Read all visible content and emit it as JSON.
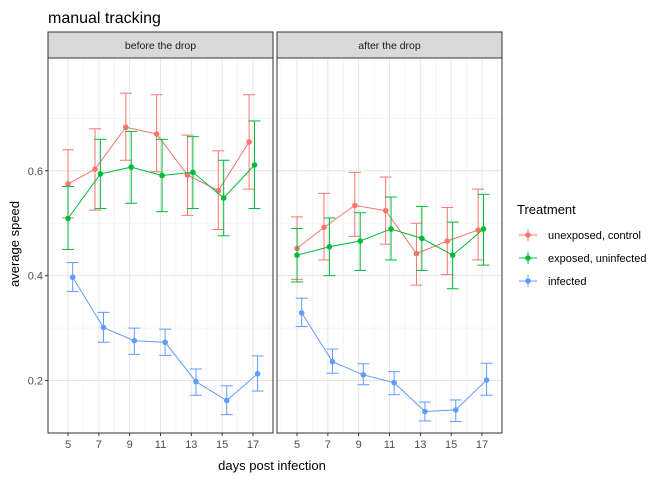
{
  "chart_data": {
    "type": "line",
    "title": "manual tracking",
    "xlabel": "days post infection",
    "ylabel": "average speed",
    "x": [
      5,
      7,
      9,
      11,
      13,
      15,
      17
    ],
    "xticks": [
      "5",
      "7",
      "9",
      "11",
      "13",
      "15",
      "17"
    ],
    "xlim": [
      3.7,
      18.3
    ],
    "ylim": [
      0.1,
      0.815
    ],
    "yticks": [
      0.2,
      0.4,
      0.6
    ],
    "ytick_labels": [
      "0.2",
      "0.4",
      "0.6"
    ],
    "grid": true,
    "theme": "bw",
    "legend": {
      "title": "Treatment",
      "position": "right",
      "entries": [
        "unexposed, control",
        "exposed, uninfected",
        "infected"
      ]
    },
    "series_colors": [
      "#F8766D",
      "#00BA38",
      "#619CFF"
    ],
    "panels": [
      {
        "label": "before the drop",
        "series": [
          {
            "name": "unexposed, control",
            "x": [
              5.0,
              6.75,
              8.75,
              10.75,
              12.75,
              14.75,
              16.75
            ],
            "values": [
              0.575,
              0.603,
              0.683,
              0.67,
              0.592,
              0.562,
              0.655
            ],
            "lower": [
              0.51,
              0.525,
              0.62,
              0.598,
              0.515,
              0.488,
              0.565
            ],
            "upper": [
              0.64,
              0.68,
              0.748,
              0.745,
              0.668,
              0.638,
              0.745
            ]
          },
          {
            "name": "exposed, uninfected",
            "x": [
              5.0,
              7.1,
              9.1,
              11.1,
              13.1,
              15.1,
              17.1
            ],
            "values": [
              0.509,
              0.594,
              0.607,
              0.591,
              0.597,
              0.548,
              0.611
            ],
            "lower": [
              0.45,
              0.528,
              0.538,
              0.522,
              0.528,
              0.476,
              0.528
            ],
            "upper": [
              0.57,
              0.66,
              0.675,
              0.66,
              0.665,
              0.62,
              0.695
            ]
          },
          {
            "name": "infected",
            "x": [
              5.3,
              7.3,
              9.3,
              11.3,
              13.3,
              15.3,
              17.3
            ],
            "values": [
              0.397,
              0.301,
              0.276,
              0.273,
              0.198,
              0.162,
              0.213
            ],
            "lower": [
              0.37,
              0.273,
              0.25,
              0.248,
              0.172,
              0.135,
              0.18
            ],
            "upper": [
              0.425,
              0.33,
              0.3,
              0.298,
              0.222,
              0.19,
              0.247
            ]
          }
        ]
      },
      {
        "label": "after the drop",
        "series": [
          {
            "name": "unexposed, control",
            "x": [
              5.0,
              6.75,
              8.75,
              10.75,
              12.75,
              14.75,
              16.75
            ],
            "values": [
              0.452,
              0.492,
              0.534,
              0.524,
              0.442,
              0.466,
              0.487
            ],
            "lower": [
              0.393,
              0.43,
              0.475,
              0.46,
              0.382,
              0.402,
              0.43
            ],
            "upper": [
              0.512,
              0.557,
              0.597,
              0.588,
              0.5,
              0.53,
              0.565
            ]
          },
          {
            "name": "exposed, uninfected",
            "x": [
              5.0,
              7.1,
              9.1,
              11.1,
              13.1,
              15.1,
              17.1
            ],
            "values": [
              0.439,
              0.455,
              0.466,
              0.489,
              0.471,
              0.439,
              0.489
            ],
            "lower": [
              0.388,
              0.4,
              0.41,
              0.43,
              0.41,
              0.375,
              0.42
            ],
            "upper": [
              0.49,
              0.51,
              0.52,
              0.55,
              0.532,
              0.502,
              0.555
            ]
          },
          {
            "name": "infected",
            "x": [
              5.3,
              7.3,
              9.3,
              11.3,
              13.3,
              15.3,
              17.3
            ],
            "values": [
              0.329,
              0.236,
              0.211,
              0.196,
              0.141,
              0.144,
              0.201
            ],
            "lower": [
              0.303,
              0.214,
              0.192,
              0.173,
              0.123,
              0.122,
              0.172
            ],
            "upper": [
              0.357,
              0.26,
              0.232,
              0.217,
              0.159,
              0.163,
              0.233
            ]
          }
        ]
      }
    ]
  }
}
